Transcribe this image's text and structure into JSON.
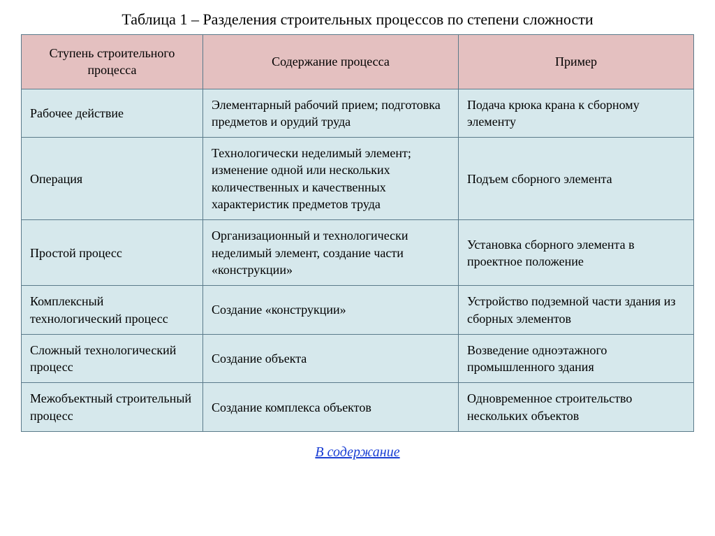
{
  "title": "Таблица 1 – Разделения строительных процессов по степени сложности",
  "table": {
    "header_bg": "#e4c0c0",
    "cell_bg": "#d6e8ec",
    "border_color": "#5a7a8a",
    "columns": [
      "Ступень строительного процесса",
      "Содержание процесса",
      "Пример"
    ],
    "rows": [
      {
        "c1": "Рабочее действие",
        "c2": "Элементарный рабочий прием; подготовка предметов и орудий труда",
        "c3": "Подача крюка крана к сборному элементу"
      },
      {
        "c1": "Операция",
        "c2": "Технологически неделимый элемент; изменение одной или нескольких количественных и   качественных характеристик предметов труда",
        "c3": "Подъем сборного элемента"
      },
      {
        "c1": "Простой процесс",
        "c2": "Организационный и технологически неделимый элемент, создание части «конструкции»",
        "c3": "Установка сборного элемента в проектное положение"
      },
      {
        "c1": "Комплексный технологический процесс",
        "c2": "Создание «конструкции»",
        "c3": "Устройство подземной части здания из сборных элементов"
      },
      {
        "c1": "Сложный технологический процесс",
        "c2": "Создание объекта",
        "c3": "Возведение одноэтажного промышленного здания"
      },
      {
        "c1": "Межобъектный строительный процесс",
        "c2": "Создание комплекса объектов",
        "c3": "Одновременное строительство нескольких объектов"
      }
    ]
  },
  "footer_link": "В содержание"
}
